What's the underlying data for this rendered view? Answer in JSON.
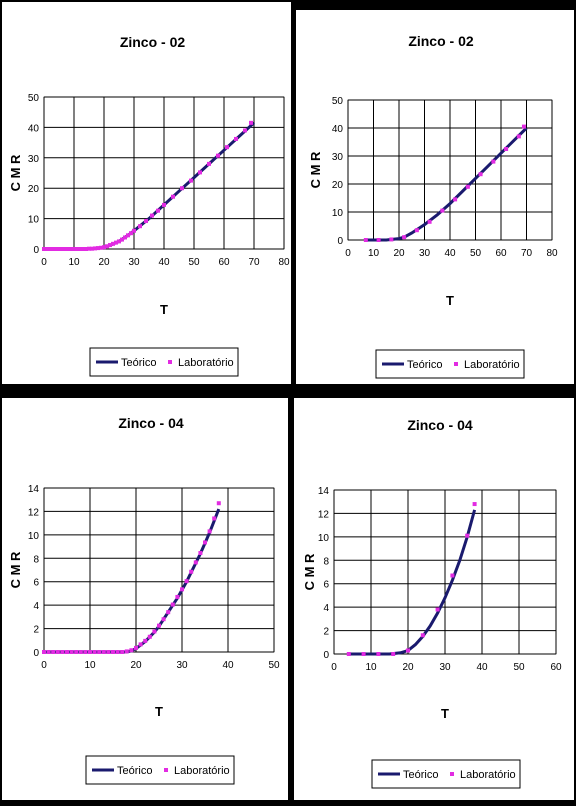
{
  "chart_data": [
    {
      "type": "line",
      "title": "Zinco - 02",
      "xlabel": "T",
      "ylabel": "C M R",
      "xlim": [
        0,
        80
      ],
      "ylim": [
        0,
        50
      ],
      "xticks": [
        0,
        10,
        20,
        30,
        40,
        50,
        60,
        70,
        80
      ],
      "yticks": [
        0,
        10,
        20,
        30,
        40,
        50
      ],
      "grid": true,
      "legend": "bottom",
      "series": [
        {
          "name": "Teórico",
          "color": "#1a1a6e",
          "style": "line",
          "x": [
            0,
            10,
            15,
            18,
            20,
            22,
            25,
            28,
            30,
            35,
            40,
            45,
            50,
            55,
            60,
            65,
            70
          ],
          "y": [
            0,
            0,
            0,
            0.3,
            0.6,
            1.2,
            2.5,
            4.5,
            6,
            10,
            14.5,
            19,
            23.5,
            28,
            32.5,
            37,
            41.5
          ]
        },
        {
          "name": "Laboratório",
          "color": "#e22be2",
          "style": "markers",
          "x": [
            0,
            1,
            2,
            3,
            4,
            5,
            6,
            7,
            8,
            9,
            10,
            11,
            12,
            13,
            14,
            15,
            16,
            17,
            18,
            19,
            20,
            21,
            22,
            23,
            24,
            25,
            26,
            27,
            28,
            29,
            30,
            32,
            34,
            36,
            38,
            40,
            43,
            46,
            49,
            52,
            55,
            58,
            61,
            64,
            67,
            69
          ],
          "y": [
            0,
            0,
            0,
            0,
            0,
            0,
            0,
            0,
            0,
            0,
            0,
            0,
            0,
            0,
            0,
            0.1,
            0.1,
            0.2,
            0.3,
            0.4,
            0.6,
            0.9,
            1.3,
            1.7,
            2.1,
            2.5,
            3.1,
            3.8,
            4.5,
            5.2,
            6,
            7.5,
            9.2,
            11,
            12.6,
            14.5,
            17.2,
            20,
            22.5,
            25.2,
            28,
            30.7,
            33.5,
            36.2,
            39,
            41.5
          ]
        }
      ]
    },
    {
      "type": "line",
      "title": "Zinco - 02",
      "xlabel": "T",
      "ylabel": "C M R",
      "xlim": [
        0,
        80
      ],
      "ylim": [
        0,
        50
      ],
      "xticks": [
        0,
        10,
        20,
        30,
        40,
        50,
        60,
        70,
        80
      ],
      "yticks": [
        0,
        10,
        20,
        30,
        40,
        50
      ],
      "grid": true,
      "legend": "bottom",
      "series": [
        {
          "name": "Teórico",
          "color": "#1a1a6e",
          "style": "line",
          "x": [
            7,
            10,
            15,
            20,
            22,
            25,
            30,
            35,
            40,
            45,
            50,
            55,
            60,
            65,
            70
          ],
          "y": [
            0,
            0,
            0,
            0.5,
            1,
            2.5,
            5.5,
            9,
            13,
            17.5,
            22,
            26.5,
            31,
            35.5,
            40
          ]
        },
        {
          "name": "Laboratório",
          "color": "#e22be2",
          "style": "markers",
          "x": [
            7,
            12,
            17,
            22,
            27,
            32,
            37,
            42,
            47,
            52,
            57,
            62,
            67,
            69
          ],
          "y": [
            0,
            0,
            0.2,
            1,
            3.5,
            6.5,
            10.5,
            14.5,
            19,
            23.5,
            28,
            32.5,
            37,
            40.5
          ]
        }
      ]
    },
    {
      "type": "line",
      "title": "Zinco - 04",
      "xlabel": "T",
      "ylabel": "C M R",
      "xlim": [
        0,
        50
      ],
      "ylim": [
        0,
        14
      ],
      "xticks": [
        0,
        10,
        20,
        30,
        40,
        50
      ],
      "yticks": [
        0,
        2,
        4,
        6,
        8,
        10,
        12,
        14
      ],
      "grid": true,
      "legend": "bottom",
      "series": [
        {
          "name": "Teórico",
          "color": "#1a1a6e",
          "style": "line",
          "x": [
            0,
            10,
            18,
            19,
            20,
            21,
            22,
            23,
            24,
            25,
            26,
            27,
            28,
            29,
            30,
            31,
            32,
            33,
            34,
            35,
            36,
            37,
            38
          ],
          "y": [
            0,
            0,
            0,
            0.1,
            0.3,
            0.6,
            0.9,
            1.3,
            1.7,
            2.2,
            2.8,
            3.4,
            4,
            4.6,
            5.3,
            6,
            6.8,
            7.6,
            8.4,
            9.3,
            10.2,
            11.2,
            12.2
          ]
        },
        {
          "name": "Laboratório",
          "color": "#e22be2",
          "style": "markers",
          "x": [
            0,
            1,
            2,
            3,
            4,
            5,
            6,
            7,
            8,
            9,
            10,
            11,
            12,
            13,
            14,
            15,
            16,
            17,
            18,
            19,
            20,
            21,
            22,
            23,
            24,
            25,
            26,
            27,
            28,
            29,
            30,
            31,
            32,
            33,
            34,
            35,
            36,
            37,
            38
          ],
          "y": [
            0,
            0,
            0,
            0,
            0,
            0,
            0,
            0,
            0,
            0,
            0,
            0,
            0,
            0,
            0,
            0,
            0,
            0,
            0.05,
            0.15,
            0.35,
            0.65,
            0.95,
            1.3,
            1.75,
            2.25,
            2.8,
            3.4,
            4.05,
            4.7,
            5.35,
            6.05,
            6.85,
            7.65,
            8.45,
            9.35,
            10.3,
            11.4,
            12.7
          ]
        }
      ]
    },
    {
      "type": "line",
      "title": "Zinco - 04",
      "xlabel": "T",
      "ylabel": "C M R",
      "xlim": [
        0,
        60
      ],
      "ylim": [
        0,
        14
      ],
      "xticks": [
        0,
        10,
        20,
        30,
        40,
        50,
        60
      ],
      "yticks": [
        0,
        2,
        4,
        6,
        8,
        10,
        12,
        14
      ],
      "grid": true,
      "legend": "bottom",
      "series": [
        {
          "name": "Teórico",
          "color": "#1a1a6e",
          "style": "line",
          "x": [
            4,
            10,
            15,
            18,
            20,
            22,
            24,
            26,
            28,
            30,
            32,
            34,
            36,
            38
          ],
          "y": [
            0,
            0,
            0,
            0.1,
            0.3,
            0.8,
            1.5,
            2.4,
            3.5,
            4.8,
            6.3,
            8,
            10,
            12.3
          ]
        },
        {
          "name": "Laboratório",
          "color": "#e22be2",
          "style": "markers",
          "x": [
            4,
            8,
            12,
            16,
            20,
            24,
            28,
            32,
            36,
            38
          ],
          "y": [
            0,
            0,
            0,
            0,
            0.3,
            1.6,
            3.8,
            6.7,
            10.1,
            12.8
          ]
        }
      ]
    }
  ]
}
